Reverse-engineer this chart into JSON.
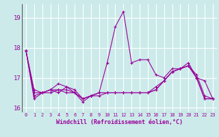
{
  "x": [
    0,
    1,
    2,
    3,
    4,
    5,
    6,
    7,
    8,
    9,
    10,
    11,
    12,
    13,
    14,
    15,
    16,
    17,
    18,
    19,
    20,
    21,
    22,
    23
  ],
  "line1": [
    17.9,
    16.6,
    16.5,
    16.6,
    16.8,
    16.7,
    16.6,
    16.3,
    16.4,
    16.5,
    17.5,
    18.7,
    19.2,
    17.5,
    17.6,
    17.6,
    17.1,
    17.0,
    17.3,
    17.3,
    17.5,
    17.0,
    16.9,
    16.3
  ],
  "line2": [
    17.9,
    16.4,
    16.5,
    16.5,
    16.6,
    16.6,
    16.5,
    16.3,
    16.4,
    16.5,
    16.5,
    16.5,
    16.5,
    16.5,
    16.5,
    16.5,
    16.7,
    16.9,
    17.2,
    17.3,
    17.4,
    17.1,
    16.4,
    16.3
  ],
  "line3": [
    17.9,
    16.3,
    16.5,
    16.6,
    16.5,
    16.7,
    16.5,
    16.3,
    16.4,
    16.5,
    16.5,
    16.5,
    16.5,
    16.5,
    16.5,
    16.5,
    16.6,
    16.9,
    17.2,
    17.3,
    17.4,
    17.0,
    16.3,
    16.3
  ],
  "line4": [
    17.9,
    16.5,
    16.5,
    16.6,
    16.6,
    16.5,
    16.5,
    16.2,
    16.4,
    16.4,
    16.5,
    16.5,
    16.5,
    16.5,
    16.5,
    16.5,
    16.6,
    16.9,
    17.2,
    17.3,
    17.4,
    17.0,
    16.3,
    16.3
  ],
  "line_color": "#990099",
  "bg_color": "#cceaea",
  "grid_color": "#ffffff",
  "xlabel": "Windchill (Refroidissement éolien,°C)",
  "ylabel_ticks": [
    16,
    17,
    18,
    19
  ],
  "xlim": [
    -0.5,
    23.5
  ],
  "ylim": [
    15.85,
    19.45
  ],
  "xlabel_fontsize": 6.0,
  "tick_fontsize": 6.5
}
